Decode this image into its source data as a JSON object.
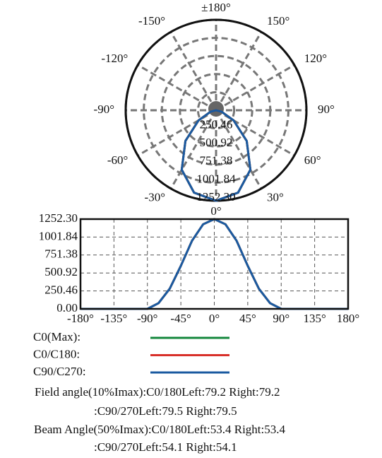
{
  "chart_data": [
    {
      "type": "polar",
      "rlim": [
        0,
        1252.3
      ],
      "rticks": [
        {
          "value": 250.46,
          "label": "250.46"
        },
        {
          "value": 500.92,
          "label": "500.92"
        },
        {
          "value": 751.38,
          "label": "751.38"
        },
        {
          "value": 1001.84,
          "label": "1001.84"
        },
        {
          "value": 1252.3,
          "label": "1252.30"
        }
      ],
      "angle_ticks": [
        {
          "value": 180,
          "label": "±180°"
        },
        {
          "value": 150,
          "label": "150°"
        },
        {
          "value": 120,
          "label": "120°"
        },
        {
          "value": 90,
          "label": "90°"
        },
        {
          "value": 60,
          "label": "60°"
        },
        {
          "value": 30,
          "label": "30°"
        },
        {
          "value": 0,
          "label": "0°"
        },
        {
          "value": -30,
          "label": "-30°"
        },
        {
          "value": -60,
          "label": "-60°"
        },
        {
          "value": -90,
          "label": "-90°"
        },
        {
          "value": -120,
          "label": "-120°"
        },
        {
          "value": -150,
          "label": "-150°"
        }
      ],
      "grid": true
    },
    {
      "type": "line",
      "x": [
        -180,
        -165,
        -150,
        -135,
        -120,
        -105,
        -90,
        -75,
        -60,
        -45,
        -30,
        -15,
        0,
        15,
        30,
        45,
        60,
        75,
        90,
        105,
        120,
        135,
        150,
        165,
        180
      ],
      "series": [
        {
          "name": "C0(Max):",
          "color": "#14873c",
          "values": [
            0,
            0,
            0,
            0,
            0,
            0,
            0,
            80,
            280,
            600,
            950,
            1180,
            1252.3,
            1180,
            950,
            600,
            280,
            80,
            0,
            0,
            0,
            0,
            0,
            0,
            0
          ]
        },
        {
          "name": "C0/C180:",
          "color": "#d8302a",
          "values": [
            0,
            0,
            0,
            0,
            0,
            0,
            0,
            80,
            280,
            600,
            950,
            1180,
            1252.3,
            1180,
            950,
            600,
            280,
            80,
            0,
            0,
            0,
            0,
            0,
            0,
            0
          ]
        },
        {
          "name": "C90/C270:",
          "color": "#1a5aa0",
          "values": [
            0,
            0,
            0,
            0,
            0,
            0,
            0,
            80,
            280,
            600,
            950,
            1180,
            1252.3,
            1180,
            950,
            600,
            280,
            80,
            0,
            0,
            0,
            0,
            0,
            0,
            0
          ]
        }
      ],
      "xlim": [
        -180,
        180
      ],
      "xticks": [
        {
          "value": -180,
          "label": "-180°"
        },
        {
          "value": -135,
          "label": "-135°"
        },
        {
          "value": -90,
          "label": "-90°"
        },
        {
          "value": -45,
          "label": "-45°"
        },
        {
          "value": 0,
          "label": "0°"
        },
        {
          "value": 45,
          "label": "45°"
        },
        {
          "value": 90,
          "label": "90°"
        },
        {
          "value": 135,
          "label": "135°"
        },
        {
          "value": 180,
          "label": "180°"
        }
      ],
      "ylim": [
        0,
        1252.3
      ],
      "yticks": [
        {
          "value": 0,
          "label": "0.00"
        },
        {
          "value": 250.46,
          "label": "250.46"
        },
        {
          "value": 500.92,
          "label": "500.92"
        },
        {
          "value": 751.38,
          "label": "751.38"
        },
        {
          "value": 1001.84,
          "label": "1001.84"
        },
        {
          "value": 1252.3,
          "label": "1252.30"
        }
      ],
      "grid": true
    }
  ],
  "notes": [
    "Field angle(10%Imax):C0/180Left:79.2 Right:79.2",
    ":C90/270Left:79.5 Right:79.5",
    "Beam Angle(50%Imax):C0/180Left:53.4 Right:53.4",
    ":C90/270Left:54.1 Right:54.1"
  ]
}
